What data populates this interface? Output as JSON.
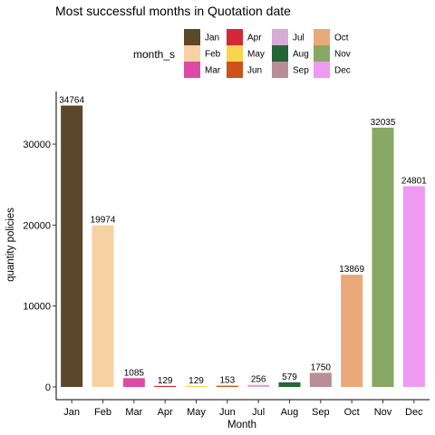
{
  "chart_data": {
    "type": "bar",
    "title": "Most successful months in Quotation date",
    "xlabel": "Month",
    "ylabel": "quantity policies",
    "legend_title": "month_s",
    "legend_position": "top",
    "grid": false,
    "ylim": [
      0,
      36000
    ],
    "yticks": [
      0,
      10000,
      20000,
      30000
    ],
    "categories": [
      "Jan",
      "Feb",
      "Mar",
      "Apr",
      "May",
      "Jun",
      "Jul",
      "Aug",
      "Sep",
      "Oct",
      "Nov",
      "Dec"
    ],
    "values": [
      34764,
      19974,
      1085,
      129,
      129,
      153,
      256,
      579,
      1750,
      13869,
      32035,
      24801
    ],
    "data_labels": [
      "34764",
      "19974",
      "1085",
      "129",
      "129",
      "153",
      "256",
      "579",
      "1750",
      "13869",
      "32035",
      "24801"
    ],
    "colors": [
      "#5c472a",
      "#f7d1a3",
      "#dd4aa5",
      "#d42738",
      "#f7d54e",
      "#cd5118",
      "#d6abd7",
      "#246536",
      "#b98c99",
      "#e9a97b",
      "#88a765",
      "#ee9af1"
    ]
  }
}
